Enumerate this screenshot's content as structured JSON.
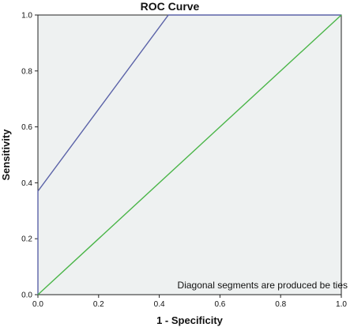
{
  "chart_data": {
    "type": "line",
    "title": "ROC Curve",
    "xlabel": "1 - Specificity",
    "ylabel": "Sensitivity",
    "xlim": [
      0,
      1
    ],
    "ylim": [
      0,
      1
    ],
    "xticks": [
      "0.0",
      "0.2",
      "0.4",
      "0.6",
      "0.8",
      "1.0"
    ],
    "yticks": [
      "0.0",
      "0.2",
      "0.4",
      "0.6",
      "0.8",
      "1.0"
    ],
    "grid": false,
    "note": "Diagonal segments are produced be ties",
    "series": [
      {
        "color": "#5b63a8",
        "points": [
          [
            0,
            0
          ],
          [
            0,
            0.37
          ],
          [
            0.43,
            1.0
          ],
          [
            1.0,
            1.0
          ]
        ]
      },
      {
        "color": "#4ab548",
        "points": [
          [
            0,
            0
          ],
          [
            1.0,
            1.0
          ]
        ]
      }
    ],
    "plot_background": "#eef1f1"
  }
}
